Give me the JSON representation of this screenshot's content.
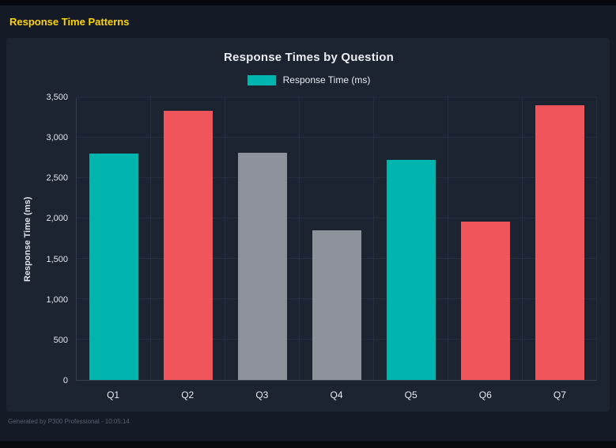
{
  "page": {
    "title": "Response Time Patterns",
    "footer": "Generated by P300 Professional - 10:05:14"
  },
  "colors": {
    "accent_yellow": "#ffd400",
    "teal": "#00b5ad",
    "red": "#f1555c",
    "gray": "#8e929b",
    "panel_bg": "#1c2331",
    "page_bg": "#141a26"
  },
  "chart_data": {
    "type": "bar",
    "title": "Response Times by Question",
    "legend": {
      "label": "Response Time (ms)",
      "color": "#00b5ad",
      "position": "top"
    },
    "categories": [
      "Q1",
      "Q2",
      "Q3",
      "Q4",
      "Q5",
      "Q6",
      "Q7"
    ],
    "values": [
      2800,
      3330,
      2810,
      1850,
      2730,
      1960,
      3400
    ],
    "bar_colors": [
      "#00b5ad",
      "#f1555c",
      "#8e929b",
      "#8e929b",
      "#00b5ad",
      "#f1555c",
      "#f1555c"
    ],
    "xlabel": "",
    "ylabel": "Response Time (ms)",
    "ylim": [
      0,
      3500
    ],
    "yticks": [
      0,
      500,
      1000,
      1500,
      2000,
      2500,
      3000,
      3500
    ],
    "ytick_labels": [
      "0",
      "500",
      "1,000",
      "1,500",
      "2,000",
      "2,500",
      "3,000",
      "3,500"
    ],
    "grid": true,
    "legend_position": "top"
  }
}
